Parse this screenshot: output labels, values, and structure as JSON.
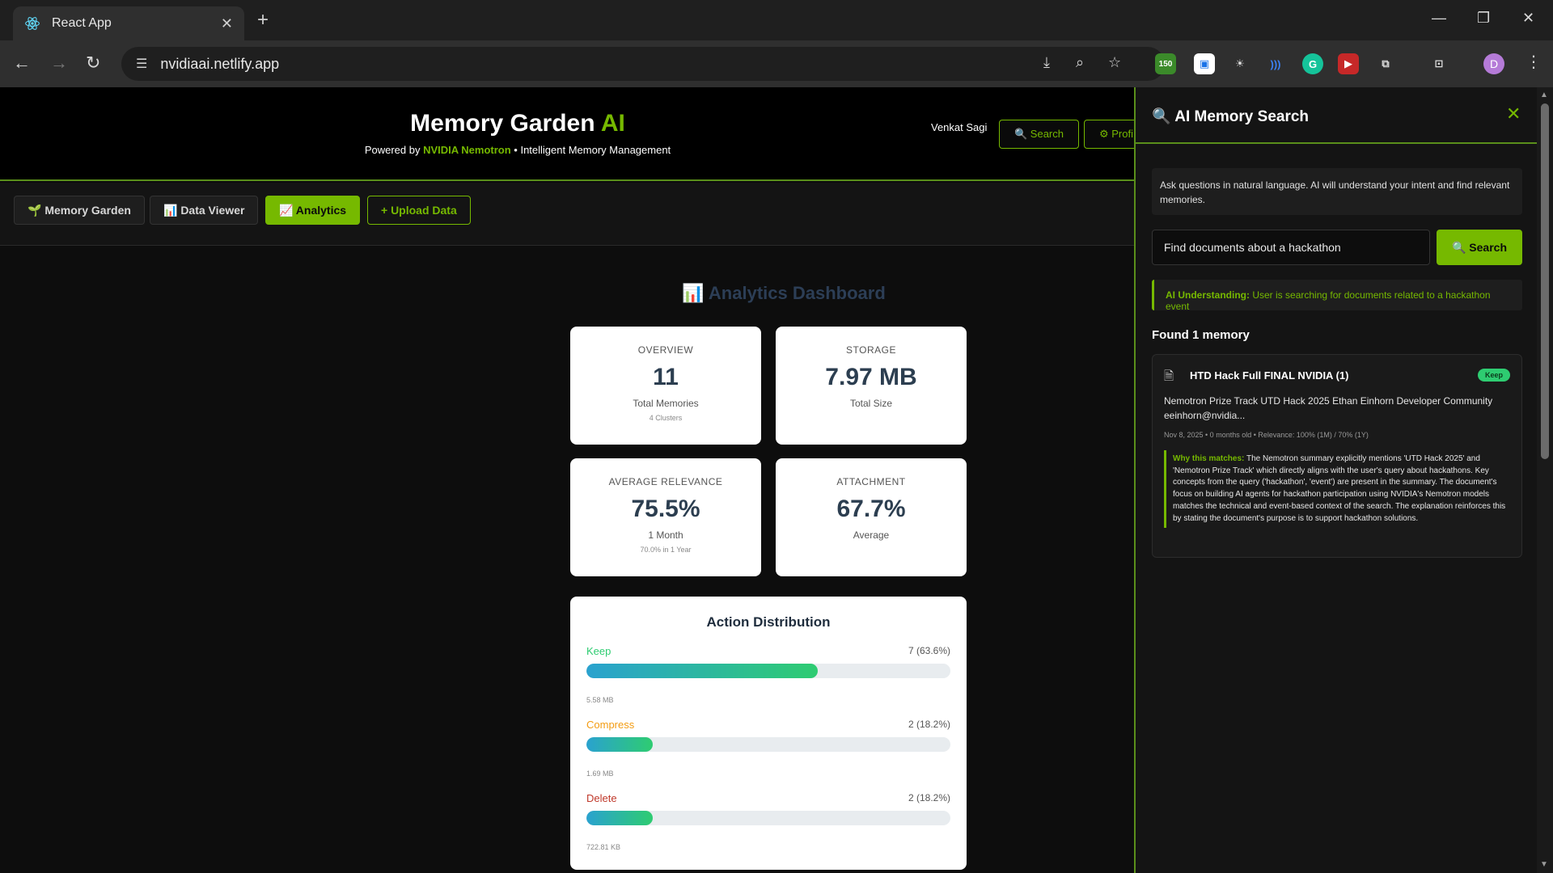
{
  "browser": {
    "tab_title": "React App",
    "url": "nvidiaai.netlify.app",
    "extension_badge": "150",
    "profile_initial": "D"
  },
  "header": {
    "title_main": "Memory Garden",
    "title_accent": "AI",
    "subtitle_prefix": "Powered by",
    "subtitle_brand": "NVIDIA Nemotron",
    "subtitle_suffix": "• Intelligent Memory Management",
    "user_name": "Venkat Sagi",
    "search_label": "🔍 Search",
    "profile_label": "⚙ Profi"
  },
  "nav": {
    "memory_garden": "🌱 Memory Garden",
    "data_viewer": "📊 Data Viewer",
    "analytics": "📈 Analytics",
    "upload": "+ Upload Data"
  },
  "dashboard": {
    "title": "📊 Analytics Dashboard",
    "overview": {
      "label": "OVERVIEW",
      "value": "11",
      "sub": "Total Memories",
      "sub2": "4 Clusters"
    },
    "storage": {
      "label": "STORAGE",
      "value": "7.97 MB",
      "sub": "Total Size"
    },
    "relevance": {
      "label": "AVERAGE RELEVANCE",
      "value": "75.5%",
      "sub": "1 Month",
      "sub2": "70.0% in 1 Year"
    },
    "attachment": {
      "label": "ATTACHMENT",
      "value": "67.7%",
      "sub": "Average"
    }
  },
  "distribution": {
    "title": "Action Distribution",
    "rows": [
      {
        "name": "Keep",
        "count": "7 (63.6%)",
        "fraction": 0.636,
        "size": "5.58 MB",
        "color": "#2ecc71"
      },
      {
        "name": "Compress",
        "count": "2 (18.2%)",
        "fraction": 0.182,
        "size": "1.69 MB",
        "color": "#f39c12"
      },
      {
        "name": "Delete",
        "count": "2 (18.2%)",
        "fraction": 0.182,
        "size": "722.81 KB",
        "color": "#c0392b"
      }
    ]
  },
  "panel": {
    "title": "🔍 AI Memory Search",
    "close": "✕",
    "info": "Ask questions in natural language. AI will understand your intent and find relevant memories.",
    "query": "Find documents about a hackathon",
    "search_label": "🔍 Search",
    "understanding_label": "AI Understanding:",
    "understanding_text": "User is searching for documents related to a hackathon event",
    "found": "Found 1 memory",
    "result": {
      "title": "HTD Hack Full FINAL NVIDIA (1)",
      "badge": "Keep",
      "snippet": "Nemotron Prize Track UTD Hack 2025 Ethan Einhorn Developer Community eeinhorn@nvidia...",
      "meta": "Nov 8, 2025  •  0 months old  •  Relevance: 100% (1M) / 70% (1Y)",
      "why_label": "Why this matches:",
      "why_text": "The Nemotron summary explicitly mentions 'UTD Hack 2025' and 'Nemotron Prize Track' which directly aligns with the user's query about hackathons. Key concepts from the query ('hackathon', 'event') are present in the summary. The document's focus on building AI agents for hackathon participation using NVIDIA's Nemotron models matches the technical and event-based context of the search. The explanation reinforces this by stating the document's purpose is to support hackathon solutions."
    }
  }
}
